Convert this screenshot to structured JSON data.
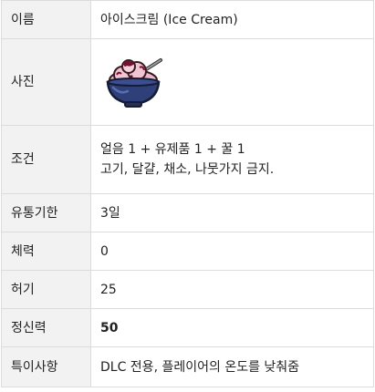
{
  "rows": [
    {
      "label": "이름",
      "value": "아이스크림 (Ice Cream)"
    },
    {
      "label": "사진",
      "image_icon": "ice-cream-bowl-icon"
    },
    {
      "label": "조건",
      "lines": [
        "얼음 1 + 유제품 1 + 꿀 1",
        "고기, 달걀, 채소, 나뭇가지 금지."
      ]
    },
    {
      "label": "유통기한",
      "value": "3일"
    },
    {
      "label": "체력",
      "value": "0"
    },
    {
      "label": "허기",
      "value": "25"
    },
    {
      "label": "정신력",
      "value": "50"
    },
    {
      "label": "특이사항",
      "value": "DLC 전용, 플레이어의 온도를 낮춰줌"
    }
  ],
  "colors": {
    "label_bg": "#f2f2f2",
    "border": "#dcdcdc",
    "bowl": "#2f3f7a",
    "ice_cream": "#e9b9c9",
    "sauce": "#7a1030"
  }
}
